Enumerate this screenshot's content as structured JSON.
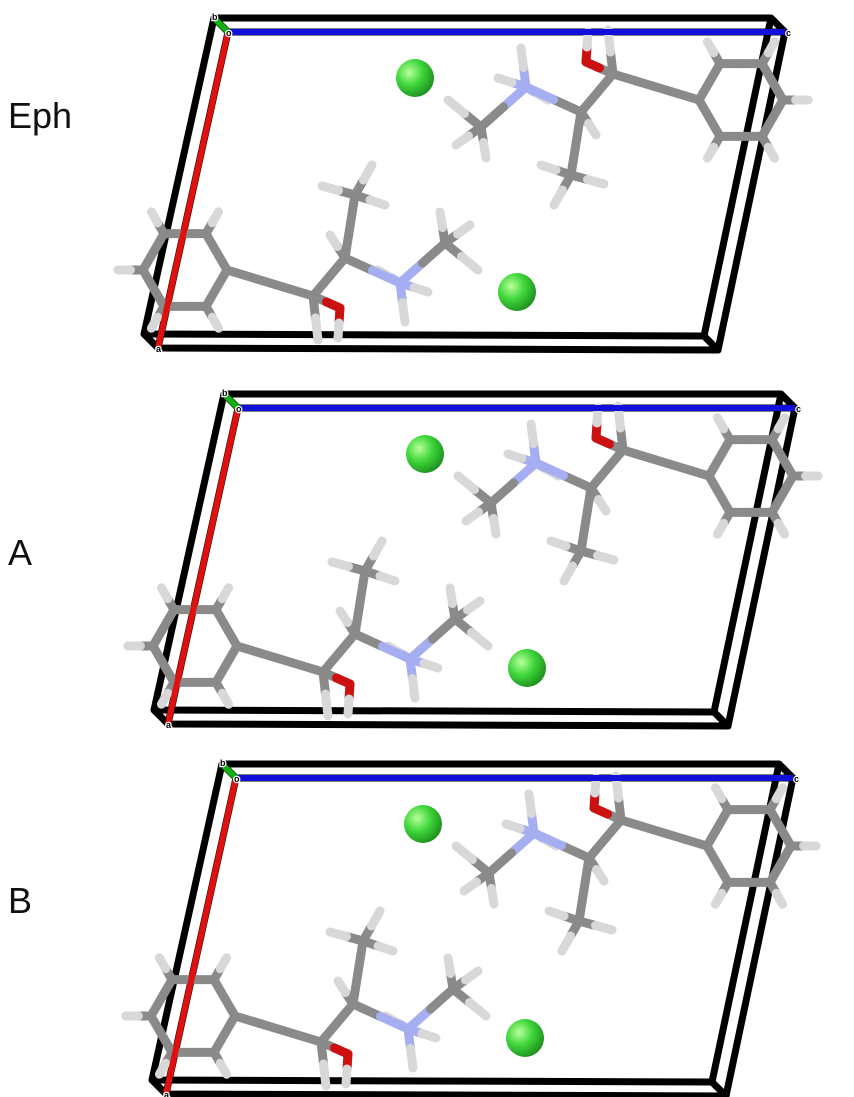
{
  "panels": [
    {
      "label": "Eph",
      "axis_labels": {
        "b": "b",
        "o": "o",
        "c": "c",
        "a": "a"
      }
    },
    {
      "label": "A",
      "axis_labels": {
        "b": "b",
        "o": "o",
        "c": "c",
        "a": "a"
      }
    },
    {
      "label": "B",
      "axis_labels": {
        "b": "b",
        "o": "o",
        "c": "c",
        "a": "a"
      }
    }
  ]
}
